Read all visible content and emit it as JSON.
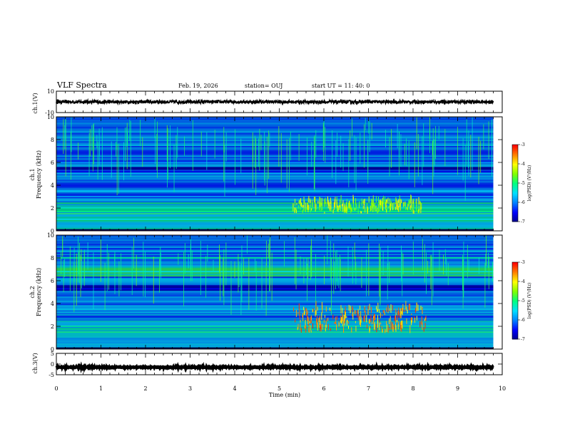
{
  "header": {
    "title": "VLF Spectra",
    "date": "Feb. 19, 2026",
    "station": "station= OUJ",
    "start": "start  UT  =   11: 40: 0"
  },
  "colors": {
    "colormap": [
      "#00008b",
      "#0000ff",
      "#0080ff",
      "#00e0ff",
      "#00ff80",
      "#80ff00",
      "#ffff00",
      "#ff8000",
      "#ff0000",
      "#ffffff"
    ],
    "background": "#00007a",
    "waveform": "#000000"
  },
  "chart_data": [
    {
      "type": "line",
      "panel": "ch1_waveform",
      "ylabel": "ch.1(V)",
      "ylim": [
        -10,
        10
      ],
      "yticks": [
        "10",
        "-10"
      ],
      "x": [
        0,
        9.8
      ],
      "mean": 0,
      "amplitude": 1.5
    },
    {
      "type": "heatmap",
      "panel": "ch1_spectrogram",
      "ylabel": "ch.1\nFrequency (kHz)",
      "ylim": [
        0,
        10
      ],
      "yticks": [
        "0",
        "2",
        "4",
        "6",
        "8",
        "10"
      ],
      "xlim": [
        0,
        9.8
      ],
      "colorbar": {
        "label": "log(PSD) (V²/Hz)",
        "ticks": [
          "-3",
          "-4",
          "-5",
          "-6",
          "-7"
        ],
        "range": [
          -7,
          -3
        ]
      },
      "bands_khz": [
        1.0,
        1.5,
        1.7,
        2.0,
        3.0,
        3.5,
        5.0,
        6.0,
        7.5
      ],
      "band_levels": [
        -5.5,
        -4.8,
        -5.0,
        -5.2,
        -5.6,
        -5.6,
        -5.8,
        -5.8,
        -5.4
      ],
      "activity": {
        "x_start": 5.3,
        "x_end": 8.2,
        "f_low": 1.5,
        "f_high": 2.5,
        "level": -4.3
      }
    },
    {
      "type": "heatmap",
      "panel": "ch2_spectrogram",
      "ylabel": "ch.2\nFrequency (kHz)",
      "ylim": [
        0,
        10
      ],
      "yticks": [
        "0",
        "2",
        "4",
        "6",
        "8",
        "10"
      ],
      "xlim": [
        0,
        9.8
      ],
      "colorbar": {
        "label": "log(PSD) (V²/Hz)",
        "ticks": [
          "-3",
          "-4",
          "-5",
          "-6",
          "-7"
        ],
        "range": [
          -7,
          -3
        ]
      },
      "bands_khz": [
        1.5,
        2.0,
        3.0,
        3.5,
        6.8,
        8.0
      ],
      "band_levels": [
        -4.9,
        -5.0,
        -5.3,
        -5.4,
        -5.4,
        -5.0
      ],
      "activity": {
        "x_start": 5.3,
        "x_end": 8.3,
        "f_low": 1.4,
        "f_high": 3.5,
        "level": -3.6
      }
    },
    {
      "type": "line",
      "panel": "ch3_waveform",
      "ylabel": "ch.3(V)",
      "ylim": [
        -5,
        5
      ],
      "yticks": [
        "5",
        "0",
        "-5"
      ],
      "x": [
        0,
        9.8
      ],
      "mean": -1.5,
      "amplitude": 0.25
    }
  ],
  "xaxis": {
    "label": "Time (min)",
    "xlim": [
      0,
      10
    ],
    "ticks": [
      "0",
      "1",
      "2",
      "3",
      "4",
      "5",
      "6",
      "7",
      "8",
      "9",
      "10"
    ]
  }
}
